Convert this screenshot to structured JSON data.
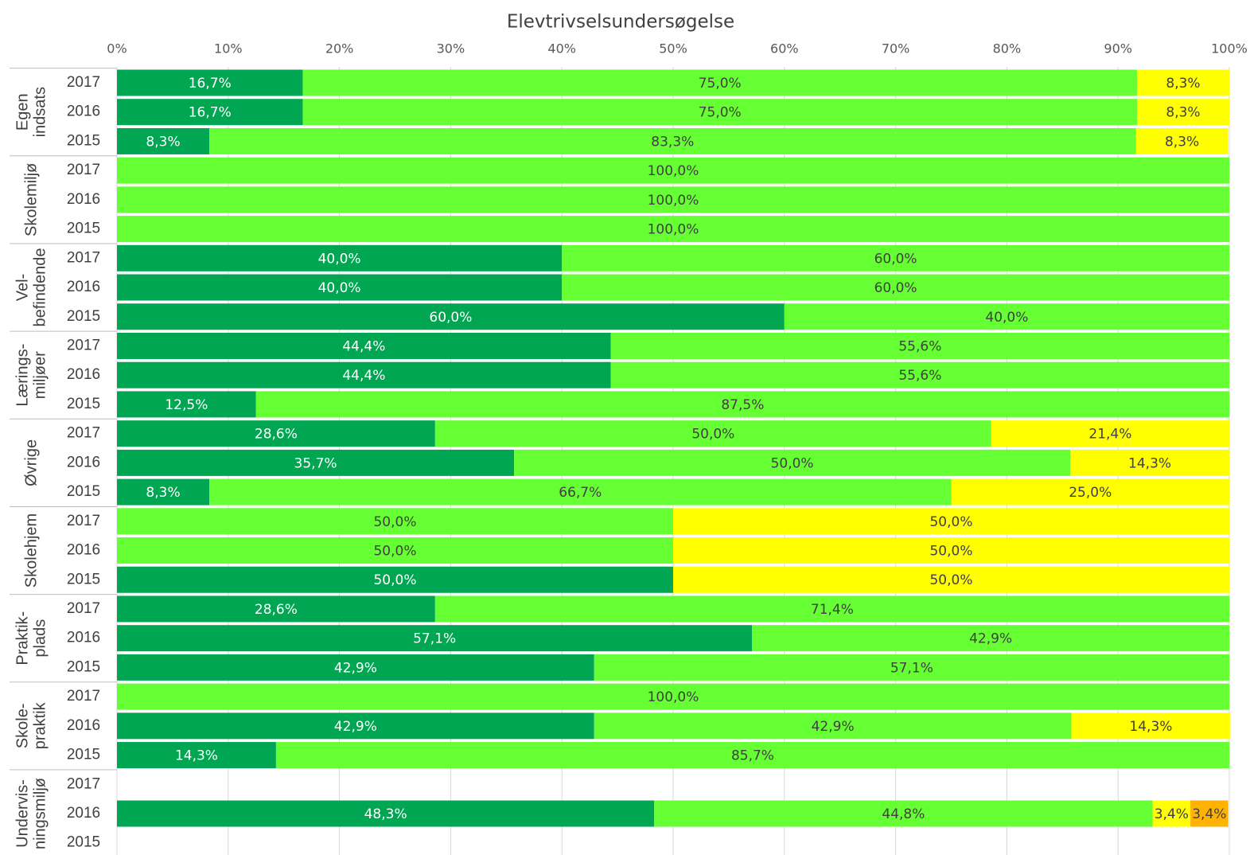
{
  "chart_data": {
    "type": "stacked-bar-horizontal",
    "title": "Elevtrivselsundersøgelse",
    "groups": [
      {
        "label": [
          "Egen",
          "indsats"
        ],
        "years": [
          "2017",
          "2016",
          "2015"
        ]
      },
      {
        "label": [
          "Skolemiljø"
        ],
        "years": [
          "2017",
          "2016",
          "2015"
        ]
      },
      {
        "label": [
          "Vel-",
          "befindende"
        ],
        "years": [
          "2017",
          "2016",
          "2015"
        ]
      },
      {
        "label": [
          "Lærings-",
          "miljøer"
        ],
        "years": [
          "2017",
          "2016",
          "2015"
        ]
      },
      {
        "label": [
          "Øvrige"
        ],
        "years": [
          "2017",
          "2016",
          "2015"
        ]
      },
      {
        "label": [
          "Skolehjem"
        ],
        "years": [
          "2017",
          "2016",
          "2015"
        ]
      },
      {
        "label": [
          "Praktik-",
          "plads"
        ],
        "years": [
          "2017",
          "2016",
          "2015"
        ]
      },
      {
        "label": [
          "Skole-",
          "praktik"
        ],
        "years": [
          "2017",
          "2016",
          "2015"
        ]
      },
      {
        "label": [
          "Undervis-",
          "ningsmiljø"
        ],
        "years": [
          "2017",
          "2016",
          "2015"
        ]
      }
    ],
    "series": [
      {
        "color": "#00a651",
        "values": [
          16.7,
          16.7,
          8.3,
          null,
          null,
          null,
          40.0,
          40.0,
          60.0,
          44.4,
          44.4,
          12.5,
          28.6,
          35.7,
          8.3,
          null,
          null,
          50.0,
          28.6,
          57.1,
          42.9,
          null,
          42.9,
          14.3,
          null,
          48.3,
          null
        ],
        "value_labels": [
          "16,7%",
          "16,7%",
          "8,3%",
          null,
          null,
          null,
          "40,0%",
          "40,0%",
          "60,0%",
          "44,4%",
          "44,4%",
          "12,5%",
          "28,6%",
          "35,7%",
          "8,3%",
          null,
          null,
          "50,0%",
          "28,6%",
          "57,1%",
          "42,9%",
          null,
          "42,9%",
          "14,3%",
          null,
          "48,3%",
          null
        ]
      },
      {
        "color": "#66ff33",
        "values": [
          75.0,
          75.0,
          83.3,
          100.0,
          100.0,
          100.0,
          60.0,
          60.0,
          40.0,
          55.6,
          55.6,
          87.5,
          50.0,
          50.0,
          66.7,
          50.0,
          50.0,
          null,
          71.4,
          42.9,
          57.1,
          100.0,
          42.9,
          85.7,
          null,
          44.8,
          null
        ],
        "value_labels": [
          "75,0%",
          "75,0%",
          "83,3%",
          "100,0%",
          "100,0%",
          "100,0%",
          "60,0%",
          "60,0%",
          "40,0%",
          "55,6%",
          "55,6%",
          "87,5%",
          "50,0%",
          "50,0%",
          "66,7%",
          "50,0%",
          "50,0%",
          null,
          "71,4%",
          "42,9%",
          "57,1%",
          "100,0%",
          "42,9%",
          "85,7%",
          null,
          "44,8%",
          null
        ]
      },
      {
        "color": "#ffff00",
        "values": [
          8.3,
          8.3,
          8.3,
          null,
          null,
          null,
          null,
          null,
          null,
          null,
          null,
          null,
          21.4,
          14.3,
          25.0,
          50.0,
          50.0,
          50.0,
          null,
          null,
          null,
          null,
          14.3,
          null,
          null,
          3.4,
          null
        ],
        "value_labels": [
          "8,3%",
          "8,3%",
          "8,3%",
          null,
          null,
          null,
          null,
          null,
          null,
          null,
          null,
          null,
          "21,4%",
          "14,3%",
          "25,0%",
          "50,0%",
          "50,0%",
          "50,0%",
          null,
          null,
          null,
          null,
          "14,3%",
          null,
          null,
          "3,4%",
          null
        ]
      },
      {
        "color": "#ffb300",
        "values": [
          null,
          null,
          null,
          null,
          null,
          null,
          null,
          null,
          null,
          null,
          null,
          null,
          null,
          null,
          null,
          null,
          null,
          null,
          null,
          null,
          null,
          null,
          null,
          null,
          null,
          3.4,
          null
        ],
        "value_labels": [
          null,
          null,
          null,
          null,
          null,
          null,
          null,
          null,
          null,
          null,
          null,
          null,
          null,
          null,
          null,
          null,
          null,
          null,
          null,
          null,
          null,
          null,
          null,
          null,
          null,
          "3,4%",
          null
        ]
      }
    ],
    "xlim": [
      0,
      100
    ],
    "xticks": [
      {
        "value": 0,
        "label": "0%"
      },
      {
        "value": 10,
        "label": "10%"
      },
      {
        "value": 20,
        "label": "20%"
      },
      {
        "value": 30,
        "label": "30%"
      },
      {
        "value": 40,
        "label": "40%"
      },
      {
        "value": 50,
        "label": "50%"
      },
      {
        "value": 60,
        "label": "60%"
      },
      {
        "value": 70,
        "label": "70%"
      },
      {
        "value": 80,
        "label": "80%"
      },
      {
        "value": 90,
        "label": "90%"
      },
      {
        "value": 100,
        "label": "100%"
      }
    ],
    "grid": true
  }
}
